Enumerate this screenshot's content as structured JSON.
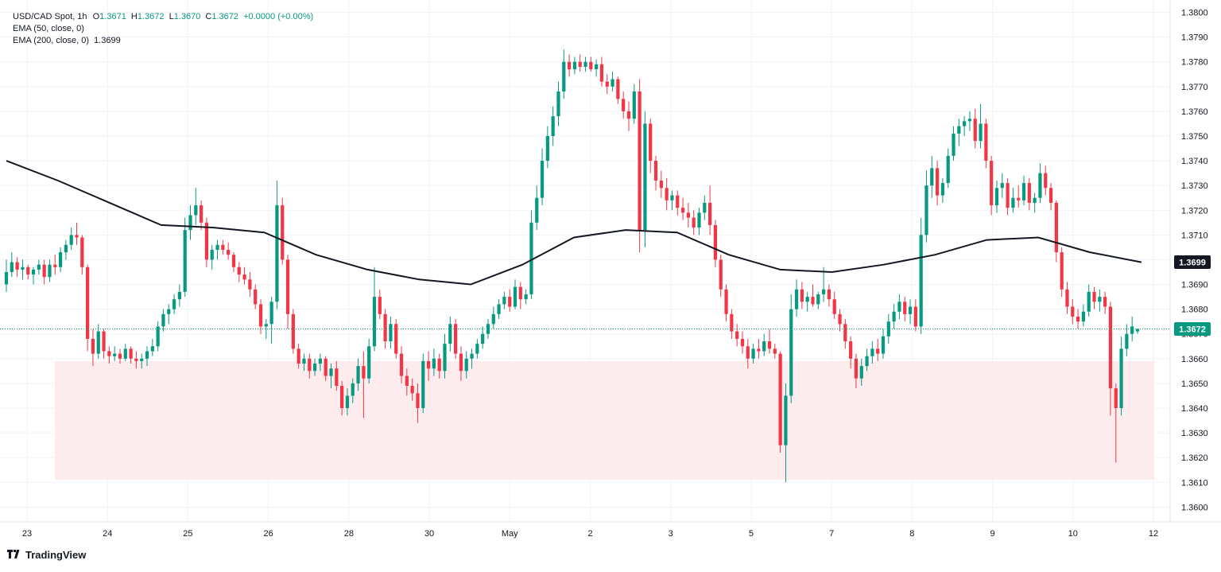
{
  "legend": {
    "symbol": "USD/CAD Spot, 1h",
    "o_label": "O",
    "o_val": "1.3671",
    "h_label": "H",
    "h_val": "1.3672",
    "l_label": "L",
    "l_val": "1.3670",
    "c_label": "C",
    "c_val": "1.3672",
    "change": "+0.0000 (+0.00%)",
    "ema50": "EMA (50, close, 0)",
    "ema200": "EMA (200, close, 0)",
    "ema200_val": "1.3699"
  },
  "brand": {
    "name": "TradingView",
    "logo_icon": "tradingview-logo-icon"
  },
  "colors": {
    "up": "#089981",
    "down": "#f23645",
    "ema": "#131722",
    "zone": "#fdecee",
    "grid": "#f0f3fa",
    "price_line": "#089981"
  },
  "chart_data": {
    "type": "candlestick",
    "title": "",
    "xlabel": "",
    "ylabel": "",
    "ylim": [
      1.3594,
      1.3805
    ],
    "y_ticks": [
      "1.3600",
      "1.3610",
      "1.3620",
      "1.3630",
      "1.3640",
      "1.3650",
      "1.3660",
      "1.3670",
      "1.3680",
      "1.3690",
      "1.3700",
      "1.3710",
      "1.3720",
      "1.3730",
      "1.3740",
      "1.3750",
      "1.3760",
      "1.3770",
      "1.3780",
      "1.3790",
      "1.3800"
    ],
    "x_ticks": [
      "23",
      "24",
      "25",
      "26",
      "28",
      "30",
      "May",
      "2",
      "3",
      "5",
      "7",
      "8",
      "9",
      "10",
      "12"
    ],
    "grid": true,
    "current_price_label": "1.3672",
    "ema200_label": "1.3699",
    "support_zone": [
      1.3611,
      1.3659
    ],
    "candles": [
      [
        1.369,
        1.37,
        1.3687,
        1.3695
      ],
      [
        1.3695,
        1.3703,
        1.3693,
        1.3699
      ],
      [
        1.3699,
        1.3701,
        1.3693,
        1.3696
      ],
      [
        1.3696,
        1.37,
        1.3692,
        1.3697
      ],
      [
        1.3697,
        1.3698,
        1.3692,
        1.3694
      ],
      [
        1.3694,
        1.3697,
        1.369,
        1.3696
      ],
      [
        1.3696,
        1.37,
        1.3694,
        1.3698
      ],
      [
        1.3698,
        1.37,
        1.369,
        1.3693
      ],
      [
        1.3693,
        1.37,
        1.3691,
        1.3698
      ],
      [
        1.3698,
        1.3702,
        1.3694,
        1.3697
      ],
      [
        1.3697,
        1.3705,
        1.3695,
        1.3703
      ],
      [
        1.3703,
        1.3708,
        1.37,
        1.3706
      ],
      [
        1.3706,
        1.3713,
        1.3704,
        1.371
      ],
      [
        1.371,
        1.3715,
        1.3706,
        1.3709
      ],
      [
        1.3709,
        1.371,
        1.3694,
        1.3697
      ],
      [
        1.3697,
        1.3698,
        1.3663,
        1.3668
      ],
      [
        1.3668,
        1.3672,
        1.3657,
        1.3662
      ],
      [
        1.3662,
        1.3674,
        1.366,
        1.3671
      ],
      [
        1.3671,
        1.3672,
        1.366,
        1.3663
      ],
      [
        1.3663,
        1.3665,
        1.3658,
        1.3661
      ],
      [
        1.3661,
        1.3665,
        1.3659,
        1.3662
      ],
      [
        1.3662,
        1.3664,
        1.3658,
        1.366
      ],
      [
        1.366,
        1.3666,
        1.3659,
        1.3664
      ],
      [
        1.3664,
        1.3665,
        1.3658,
        1.366
      ],
      [
        1.366,
        1.3663,
        1.3656,
        1.3659
      ],
      [
        1.3659,
        1.3662,
        1.3656,
        1.366
      ],
      [
        1.366,
        1.3665,
        1.3657,
        1.3663
      ],
      [
        1.3663,
        1.3668,
        1.3661,
        1.3665
      ],
      [
        1.3665,
        1.3675,
        1.3663,
        1.3673
      ],
      [
        1.3673,
        1.368,
        1.3671,
        1.3678
      ],
      [
        1.3678,
        1.3682,
        1.3674,
        1.368
      ],
      [
        1.368,
        1.3686,
        1.3678,
        1.3684
      ],
      [
        1.3684,
        1.369,
        1.3681,
        1.3687
      ],
      [
        1.3687,
        1.3717,
        1.3685,
        1.3712
      ],
      [
        1.3712,
        1.3722,
        1.3708,
        1.3718
      ],
      [
        1.3718,
        1.3729,
        1.3714,
        1.3722
      ],
      [
        1.3722,
        1.3724,
        1.3712,
        1.3715
      ],
      [
        1.3715,
        1.3717,
        1.3697,
        1.37
      ],
      [
        1.37,
        1.3706,
        1.3696,
        1.3704
      ],
      [
        1.3704,
        1.3708,
        1.37,
        1.3706
      ],
      [
        1.3706,
        1.3708,
        1.3702,
        1.3704
      ],
      [
        1.3704,
        1.3707,
        1.37,
        1.3702
      ],
      [
        1.3702,
        1.3703,
        1.3695,
        1.3697
      ],
      [
        1.3697,
        1.3699,
        1.3691,
        1.3694
      ],
      [
        1.3694,
        1.3697,
        1.369,
        1.3692
      ],
      [
        1.3692,
        1.3695,
        1.3685,
        1.3688
      ],
      [
        1.3688,
        1.369,
        1.368,
        1.3682
      ],
      [
        1.3682,
        1.3684,
        1.367,
        1.3673
      ],
      [
        1.3673,
        1.3676,
        1.3668,
        1.3674
      ],
      [
        1.3674,
        1.3685,
        1.3666,
        1.3683
      ],
      [
        1.3683,
        1.3732,
        1.368,
        1.3722
      ],
      [
        1.3722,
        1.3725,
        1.3698,
        1.37
      ],
      [
        1.37,
        1.3702,
        1.3672,
        1.3678
      ],
      [
        1.3678,
        1.368,
        1.3662,
        1.3664
      ],
      [
        1.3664,
        1.3666,
        1.3656,
        1.3658
      ],
      [
        1.3658,
        1.3662,
        1.3655,
        1.366
      ],
      [
        1.366,
        1.3662,
        1.3652,
        1.3655
      ],
      [
        1.3655,
        1.366,
        1.3653,
        1.3658
      ],
      [
        1.3658,
        1.3662,
        1.3655,
        1.366
      ],
      [
        1.366,
        1.3661,
        1.3651,
        1.3653
      ],
      [
        1.3653,
        1.3658,
        1.3648,
        1.3656
      ],
      [
        1.3656,
        1.3659,
        1.3647,
        1.3649
      ],
      [
        1.3649,
        1.3651,
        1.3637,
        1.364
      ],
      [
        1.364,
        1.3648,
        1.3637,
        1.3645
      ],
      [
        1.3645,
        1.3652,
        1.3642,
        1.365
      ],
      [
        1.365,
        1.366,
        1.3647,
        1.3657
      ],
      [
        1.3657,
        1.3663,
        1.3636,
        1.3652
      ],
      [
        1.3652,
        1.3668,
        1.365,
        1.3665
      ],
      [
        1.3665,
        1.3697,
        1.3663,
        1.3685
      ],
      [
        1.3685,
        1.3688,
        1.3676,
        1.3678
      ],
      [
        1.3678,
        1.368,
        1.3664,
        1.3667
      ],
      [
        1.3667,
        1.3677,
        1.3664,
        1.3674
      ],
      [
        1.3674,
        1.3676,
        1.366,
        1.3662
      ],
      [
        1.3662,
        1.3665,
        1.365,
        1.3653
      ],
      [
        1.3653,
        1.3656,
        1.3645,
        1.3649
      ],
      [
        1.3649,
        1.3652,
        1.3643,
        1.3646
      ],
      [
        1.3646,
        1.365,
        1.3634,
        1.364
      ],
      [
        1.364,
        1.3662,
        1.3638,
        1.3659
      ],
      [
        1.3659,
        1.3663,
        1.3651,
        1.3656
      ],
      [
        1.3656,
        1.3664,
        1.3653,
        1.366
      ],
      [
        1.366,
        1.3662,
        1.3652,
        1.3655
      ],
      [
        1.3655,
        1.367,
        1.3652,
        1.3666
      ],
      [
        1.3666,
        1.3677,
        1.3663,
        1.3674
      ],
      [
        1.3674,
        1.3676,
        1.366,
        1.3662
      ],
      [
        1.3662,
        1.3665,
        1.3651,
        1.3655
      ],
      [
        1.3655,
        1.3663,
        1.3652,
        1.366
      ],
      [
        1.366,
        1.3664,
        1.3656,
        1.3662
      ],
      [
        1.3662,
        1.3668,
        1.366,
        1.3666
      ],
      [
        1.3666,
        1.3673,
        1.3664,
        1.367
      ],
      [
        1.367,
        1.3676,
        1.3668,
        1.3674
      ],
      [
        1.3674,
        1.3681,
        1.3672,
        1.3678
      ],
      [
        1.3678,
        1.3684,
        1.3676,
        1.3682
      ],
      [
        1.3682,
        1.3687,
        1.368,
        1.3685
      ],
      [
        1.3685,
        1.3688,
        1.3679,
        1.3681
      ],
      [
        1.3681,
        1.3692,
        1.368,
        1.3689
      ],
      [
        1.3689,
        1.3691,
        1.368,
        1.3684
      ],
      [
        1.3684,
        1.3688,
        1.3682,
        1.3686
      ],
      [
        1.3686,
        1.372,
        1.3684,
        1.3715
      ],
      [
        1.3715,
        1.373,
        1.3712,
        1.3725
      ],
      [
        1.3725,
        1.3745,
        1.3722,
        1.374
      ],
      [
        1.374,
        1.3754,
        1.3737,
        1.375
      ],
      [
        1.375,
        1.3762,
        1.3746,
        1.3758
      ],
      [
        1.3758,
        1.3772,
        1.3754,
        1.3768
      ],
      [
        1.3768,
        1.3785,
        1.3765,
        1.378
      ],
      [
        1.378,
        1.3783,
        1.3774,
        1.3777
      ],
      [
        1.3777,
        1.3782,
        1.3775,
        1.378
      ],
      [
        1.378,
        1.3783,
        1.3776,
        1.3778
      ],
      [
        1.3778,
        1.3782,
        1.3776,
        1.378
      ],
      [
        1.378,
        1.3782,
        1.3776,
        1.3777
      ],
      [
        1.3777,
        1.3781,
        1.3774,
        1.3779
      ],
      [
        1.3779,
        1.3782,
        1.377,
        1.3772
      ],
      [
        1.3772,
        1.3775,
        1.3767,
        1.377
      ],
      [
        1.377,
        1.3776,
        1.3768,
        1.3773
      ],
      [
        1.3773,
        1.3774,
        1.3763,
        1.3765
      ],
      [
        1.3765,
        1.3768,
        1.3757,
        1.376
      ],
      [
        1.376,
        1.3764,
        1.3752,
        1.3757
      ],
      [
        1.3757,
        1.3771,
        1.3755,
        1.3768
      ],
      [
        1.3768,
        1.3773,
        1.3703,
        1.3712
      ],
      [
        1.3712,
        1.376,
        1.3705,
        1.3755
      ],
      [
        1.3755,
        1.3757,
        1.3735,
        1.374
      ],
      [
        1.374,
        1.3742,
        1.3728,
        1.3732
      ],
      [
        1.3732,
        1.3736,
        1.3725,
        1.3729
      ],
      [
        1.3729,
        1.3733,
        1.372,
        1.3724
      ],
      [
        1.3724,
        1.3728,
        1.372,
        1.3726
      ],
      [
        1.3726,
        1.3728,
        1.3718,
        1.3721
      ],
      [
        1.3721,
        1.3725,
        1.3716,
        1.3719
      ],
      [
        1.3719,
        1.3723,
        1.3713,
        1.3717
      ],
      [
        1.3717,
        1.372,
        1.371,
        1.3713
      ],
      [
        1.3713,
        1.3721,
        1.371,
        1.3719
      ],
      [
        1.3719,
        1.3726,
        1.3716,
        1.3723
      ],
      [
        1.3723,
        1.373,
        1.371,
        1.3714
      ],
      [
        1.3714,
        1.3716,
        1.3697,
        1.37
      ],
      [
        1.37,
        1.3702,
        1.3685,
        1.3688
      ],
      [
        1.3688,
        1.369,
        1.3675,
        1.3678
      ],
      [
        1.3678,
        1.368,
        1.3668,
        1.3671
      ],
      [
        1.3671,
        1.3674,
        1.3665,
        1.3668
      ],
      [
        1.3668,
        1.3671,
        1.3662,
        1.3665
      ],
      [
        1.3665,
        1.3668,
        1.3656,
        1.366
      ],
      [
        1.366,
        1.3666,
        1.3658,
        1.3664
      ],
      [
        1.3664,
        1.3668,
        1.366,
        1.3663
      ],
      [
        1.3663,
        1.367,
        1.3661,
        1.3667
      ],
      [
        1.3667,
        1.3672,
        1.3662,
        1.3664
      ],
      [
        1.3664,
        1.3666,
        1.366,
        1.3662
      ],
      [
        1.3662,
        1.3663,
        1.3622,
        1.3625
      ],
      [
        1.3625,
        1.365,
        1.361,
        1.3645
      ],
      [
        1.3645,
        1.3686,
        1.3642,
        1.368
      ],
      [
        1.368,
        1.3692,
        1.3677,
        1.3688
      ],
      [
        1.3688,
        1.3691,
        1.368,
        1.3683
      ],
      [
        1.3683,
        1.3687,
        1.3679,
        1.3685
      ],
      [
        1.3685,
        1.369,
        1.3681,
        1.3682
      ],
      [
        1.3682,
        1.3687,
        1.368,
        1.3686
      ],
      [
        1.3686,
        1.3697,
        1.3683,
        1.3688
      ],
      [
        1.3688,
        1.369,
        1.3681,
        1.3684
      ],
      [
        1.3684,
        1.3687,
        1.3676,
        1.3678
      ],
      [
        1.3678,
        1.368,
        1.3671,
        1.3674
      ],
      [
        1.3674,
        1.3676,
        1.3664,
        1.3667
      ],
      [
        1.3667,
        1.3669,
        1.3656,
        1.366
      ],
      [
        1.366,
        1.3662,
        1.3648,
        1.3652
      ],
      [
        1.3652,
        1.366,
        1.3649,
        1.3657
      ],
      [
        1.3657,
        1.3664,
        1.3655,
        1.3661
      ],
      [
        1.3661,
        1.3667,
        1.3658,
        1.3664
      ],
      [
        1.3664,
        1.3668,
        1.3659,
        1.3662
      ],
      [
        1.3662,
        1.3672,
        1.366,
        1.3669
      ],
      [
        1.3669,
        1.3678,
        1.3666,
        1.3675
      ],
      [
        1.3675,
        1.3682,
        1.3672,
        1.3679
      ],
      [
        1.3679,
        1.3686,
        1.3676,
        1.3683
      ],
      [
        1.3683,
        1.3685,
        1.3675,
        1.3678
      ],
      [
        1.3678,
        1.3684,
        1.3674,
        1.3681
      ],
      [
        1.3681,
        1.3684,
        1.3671,
        1.3673
      ],
      [
        1.3673,
        1.3717,
        1.367,
        1.371
      ],
      [
        1.371,
        1.3736,
        1.3707,
        1.373
      ],
      [
        1.373,
        1.3742,
        1.3725,
        1.3737
      ],
      [
        1.3737,
        1.374,
        1.3722,
        1.3726
      ],
      [
        1.3726,
        1.3733,
        1.3723,
        1.3731
      ],
      [
        1.3731,
        1.3745,
        1.3729,
        1.3742
      ],
      [
        1.3742,
        1.3754,
        1.374,
        1.3751
      ],
      [
        1.3751,
        1.3757,
        1.3746,
        1.3754
      ],
      [
        1.3754,
        1.3758,
        1.375,
        1.3756
      ],
      [
        1.3756,
        1.376,
        1.3752,
        1.3757
      ],
      [
        1.3757,
        1.3761,
        1.3745,
        1.3748
      ],
      [
        1.3748,
        1.3763,
        1.3745,
        1.3755
      ],
      [
        1.3755,
        1.3757,
        1.3737,
        1.374
      ],
      [
        1.374,
        1.3742,
        1.3718,
        1.3722
      ],
      [
        1.3722,
        1.3732,
        1.3719,
        1.3729
      ],
      [
        1.3729,
        1.3735,
        1.3725,
        1.3731
      ],
      [
        1.3731,
        1.3733,
        1.3718,
        1.3721
      ],
      [
        1.3721,
        1.3729,
        1.3719,
        1.3725
      ],
      [
        1.3725,
        1.373,
        1.3721,
        1.3724
      ],
      [
        1.3724,
        1.3734,
        1.3722,
        1.3731
      ],
      [
        1.3731,
        1.3733,
        1.372,
        1.3723
      ],
      [
        1.3723,
        1.3727,
        1.3719,
        1.3725
      ],
      [
        1.3725,
        1.3739,
        1.3723,
        1.3735
      ],
      [
        1.3735,
        1.3738,
        1.3726,
        1.3729
      ],
      [
        1.3729,
        1.3731,
        1.372,
        1.3723
      ],
      [
        1.3723,
        1.3724,
        1.3699,
        1.3703
      ],
      [
        1.3703,
        1.3705,
        1.3685,
        1.3688
      ],
      [
        1.3688,
        1.3691,
        1.3678,
        1.3681
      ],
      [
        1.3681,
        1.3684,
        1.3674,
        1.3677
      ],
      [
        1.3677,
        1.368,
        1.3672,
        1.3675
      ],
      [
        1.3675,
        1.3682,
        1.3673,
        1.3679
      ],
      [
        1.3679,
        1.369,
        1.3677,
        1.3687
      ],
      [
        1.3687,
        1.3689,
        1.368,
        1.3683
      ],
      [
        1.3683,
        1.3688,
        1.3679,
        1.3685
      ],
      [
        1.3685,
        1.3687,
        1.3678,
        1.3681
      ],
      [
        1.3681,
        1.3683,
        1.3637,
        1.3648
      ],
      [
        1.3648,
        1.365,
        1.3618,
        1.364
      ],
      [
        1.364,
        1.3669,
        1.3637,
        1.3664
      ],
      [
        1.3664,
        1.3674,
        1.3661,
        1.367
      ],
      [
        1.367,
        1.3677,
        1.3667,
        1.3673
      ],
      [
        1.3671,
        1.3672,
        1.367,
        1.3672
      ]
    ],
    "ema200": [
      1.374,
      1.3732,
      1.3723,
      1.3714,
      1.3713,
      1.3711,
      1.3702,
      1.3696,
      1.3692,
      1.369,
      1.3698,
      1.3709,
      1.3712,
      1.3711,
      1.3702,
      1.3696,
      1.3695,
      1.3698,
      1.3702,
      1.3708,
      1.3709,
      1.3703,
      1.3699
    ]
  }
}
